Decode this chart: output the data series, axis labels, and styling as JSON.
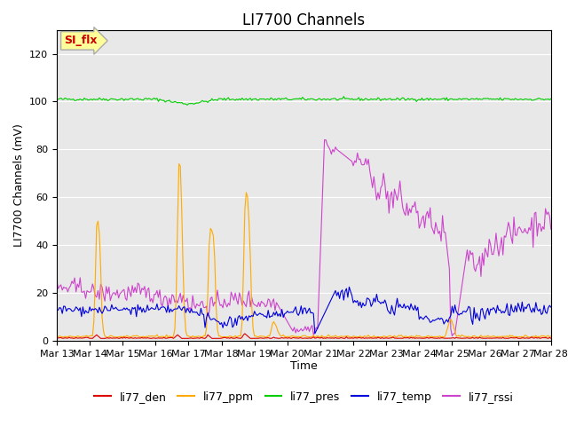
{
  "title": "LI7700 Channels",
  "ylabel": "LI7700 Channels (mV)",
  "xlabel": "Time",
  "annotation_text": "SI_flx",
  "annotation_bg": "#ffff99",
  "annotation_border": "#aaaaaa",
  "annotation_text_color": "#cc0000",
  "xlim_start": 0,
  "xlim_end": 360,
  "ylim": [
    0,
    130
  ],
  "yticks": [
    0,
    20,
    40,
    60,
    80,
    100,
    120
  ],
  "bg_color": "#e8e8e8",
  "grid_color": "#ffffff",
  "title_fontsize": 12,
  "label_fontsize": 9,
  "tick_fontsize": 8,
  "legend_fontsize": 9,
  "colors": {
    "li77_den": "#dd0000",
    "li77_ppm": "#ffaa00",
    "li77_pres": "#00cc00",
    "li77_temp": "#0000dd",
    "li77_rssi": "#cc44cc"
  },
  "x_tick_labels": [
    "Mar 13",
    "Mar 14",
    "Mar 15",
    "Mar 16",
    "Mar 17",
    "Mar 18",
    "Mar 19",
    "Mar 20",
    "Mar 21",
    "Mar 22",
    "Mar 23",
    "Mar 24",
    "Mar 25",
    "Mar 26",
    "Mar 27",
    "Mar 28"
  ],
  "x_tick_positions": [
    0,
    24,
    48,
    72,
    96,
    120,
    144,
    168,
    192,
    216,
    240,
    264,
    288,
    312,
    336,
    360
  ]
}
